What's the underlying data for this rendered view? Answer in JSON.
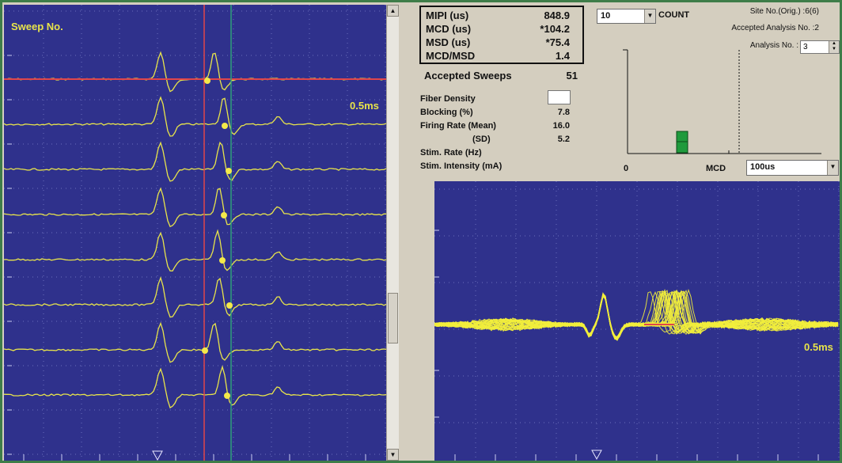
{
  "left_scope": {
    "label": "Sweep No.",
    "time_marker": "0.5ms",
    "trace_color": "#e8e44a",
    "background": "#2f318c",
    "cursor_red": "#e0464a",
    "cursor_green": "#2fa07a"
  },
  "stats": {
    "mipi": {
      "label": "MIPI (us)",
      "value": "848.9"
    },
    "mcd": {
      "label": "MCD (us)",
      "value": "*104.2"
    },
    "msd": {
      "label": "MSD (us)",
      "value": "*75.4"
    },
    "ratio": {
      "label": "MCD/MSD",
      "value": "1.4"
    }
  },
  "accepted_sweeps": {
    "label": "Accepted Sweeps",
    "value": "51"
  },
  "params": [
    {
      "label": "Fiber Density",
      "value": ""
    },
    {
      "label": "Blocking (%)",
      "value": "7.8"
    },
    {
      "label": "Firing Rate (Mean)",
      "value": "16.0"
    },
    {
      "label": "(SD)",
      "value": "5.2"
    },
    {
      "label": "Stim. Rate (Hz)",
      "value": ""
    },
    {
      "label": "Stim. Intensity (mA)",
      "value": ""
    }
  ],
  "count_select": {
    "value": "10",
    "label": "COUNT"
  },
  "site": {
    "site_no": "Site No.(Orig.) :6(6)",
    "accepted_analysis": "Accepted Analysis No. :2",
    "analysis_label": "Analysis No. :",
    "analysis_value": "3"
  },
  "histogram": {
    "x_start": "0",
    "x_label": "MCD",
    "bar_color": "#1f9a3c",
    "bin_select": "100us"
  },
  "right_scope": {
    "time_marker": "0.5ms",
    "trace_color": "#f2ee3c"
  },
  "icons": {
    "scroll_up": "▲",
    "scroll_down": "▼",
    "dropdown": "▼"
  }
}
